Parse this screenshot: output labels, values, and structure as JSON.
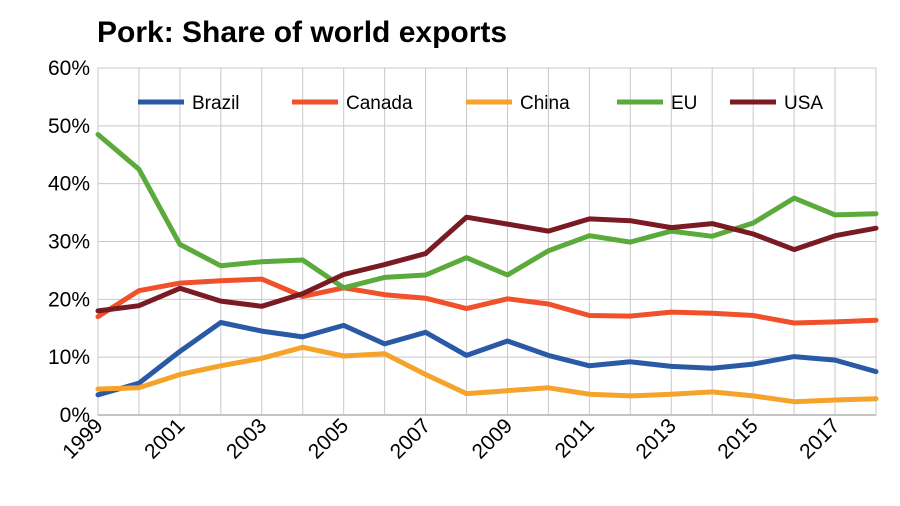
{
  "chart_data": {
    "type": "line",
    "title": "Pork: Share of world exports",
    "xlabel": "",
    "ylabel": "",
    "x": [
      1999,
      2000,
      2001,
      2002,
      2003,
      2004,
      2005,
      2006,
      2007,
      2008,
      2009,
      2010,
      2011,
      2012,
      2013,
      2014,
      2015,
      2016,
      2017,
      2018
    ],
    "x_tick_labels": [
      "1999",
      "2001",
      "2003",
      "2005",
      "2007",
      "2009",
      "2011",
      "2013",
      "2015",
      "2017"
    ],
    "y_tick_labels": [
      "0%",
      "10%",
      "20%",
      "30%",
      "40%",
      "50%",
      "60%"
    ],
    "ylim": [
      0,
      60
    ],
    "grid": true,
    "legend_position": "top",
    "series": [
      {
        "name": "Brazil",
        "color": "#2a5aa6",
        "values": [
          3.5,
          5.5,
          11,
          16,
          14.5,
          13.5,
          15.5,
          12.3,
          14.3,
          10.3,
          12.8,
          10.3,
          8.5,
          9.2,
          8.4,
          8.1,
          8.8,
          10.1,
          9.5,
          7.5
        ]
      },
      {
        "name": "Canada",
        "color": "#f0502a",
        "values": [
          17,
          21.5,
          22.8,
          23.2,
          23.5,
          20.5,
          22,
          20.8,
          20.2,
          18.4,
          20.1,
          19.2,
          17.2,
          17.1,
          17.8,
          17.6,
          17.2,
          15.9,
          16.1,
          16.4
        ]
      },
      {
        "name": "China",
        "color": "#f5a32a",
        "values": [
          4.5,
          4.7,
          7,
          8.5,
          9.8,
          11.7,
          10.2,
          10.6,
          7,
          3.7,
          4.2,
          4.7,
          3.6,
          3.3,
          3.6,
          4,
          3.3,
          2.3,
          2.6,
          2.8
        ]
      },
      {
        "name": "EU",
        "color": "#5aaa3c",
        "values": [
          48.5,
          42.5,
          29.5,
          25.8,
          26.5,
          26.8,
          22,
          23.8,
          24.2,
          27.2,
          24.2,
          28.4,
          31,
          29.9,
          31.8,
          30.9,
          33.2,
          37.5,
          34.6,
          34.8
        ]
      },
      {
        "name": "USA",
        "color": "#7a1a22",
        "values": [
          18,
          18.9,
          21.9,
          19.7,
          18.8,
          21,
          24.3,
          26,
          27.9,
          34.2,
          33,
          31.8,
          33.9,
          33.6,
          32.4,
          33.1,
          31.3,
          28.6,
          31,
          32.3
        ]
      }
    ]
  }
}
